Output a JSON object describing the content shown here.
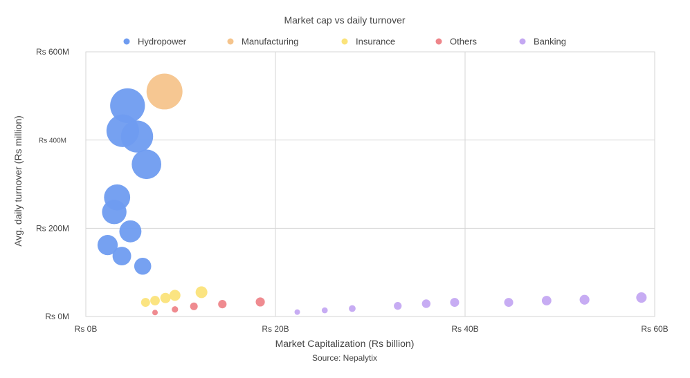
{
  "chart_data": {
    "type": "scatter",
    "title": "Market cap vs daily turnover",
    "xlabel": "Market Capitalization (Rs billion)",
    "ylabel": "Avg. daily turnover (Rs million)",
    "source": "Source: Nepalytix",
    "xlim": [
      0,
      60
    ],
    "ylim": [
      0,
      600
    ],
    "x_ticks": [
      {
        "value": 0,
        "label": "Rs 0B"
      },
      {
        "value": 20,
        "label": "Rs 20B"
      },
      {
        "value": 40,
        "label": "Rs 40B"
      },
      {
        "value": 60,
        "label": "Rs 60B"
      }
    ],
    "y_ticks": [
      {
        "value": 0,
        "label": "Rs 0M"
      },
      {
        "value": 200,
        "label": "Rs 200M"
      },
      {
        "value": 400,
        "label": "Rs 400M"
      },
      {
        "value": 600,
        "label": "Rs 600M"
      }
    ],
    "grid": true,
    "legend_position": "top",
    "bubble_size_encodes": "turnover",
    "series": [
      {
        "name": "Hydropower",
        "color": "#6f9cf0",
        "points": [
          {
            "x": 4.4,
            "y": 478
          },
          {
            "x": 3.9,
            "y": 421
          },
          {
            "x": 5.4,
            "y": 408
          },
          {
            "x": 6.4,
            "y": 345
          },
          {
            "x": 3.3,
            "y": 270
          },
          {
            "x": 3.0,
            "y": 237
          },
          {
            "x": 4.7,
            "y": 193
          },
          {
            "x": 2.3,
            "y": 162
          },
          {
            "x": 3.8,
            "y": 137
          },
          {
            "x": 6.0,
            "y": 114
          }
        ]
      },
      {
        "name": "Manufacturing",
        "color": "#f5c48c",
        "points": [
          {
            "x": 8.3,
            "y": 510
          }
        ]
      },
      {
        "name": "Insurance",
        "color": "#fbe37a",
        "points": [
          {
            "x": 12.2,
            "y": 55
          },
          {
            "x": 9.4,
            "y": 48
          },
          {
            "x": 8.4,
            "y": 42
          },
          {
            "x": 7.3,
            "y": 36
          },
          {
            "x": 6.3,
            "y": 32
          }
        ]
      },
      {
        "name": "Others",
        "color": "#ee858a",
        "points": [
          {
            "x": 18.4,
            "y": 33
          },
          {
            "x": 14.4,
            "y": 28
          },
          {
            "x": 11.4,
            "y": 23
          },
          {
            "x": 9.4,
            "y": 16
          },
          {
            "x": 7.3,
            "y": 9
          }
        ]
      },
      {
        "name": "Banking",
        "color": "#c4a8f2",
        "points": [
          {
            "x": 22.3,
            "y": 10
          },
          {
            "x": 25.2,
            "y": 14
          },
          {
            "x": 28.1,
            "y": 18
          },
          {
            "x": 32.9,
            "y": 24
          },
          {
            "x": 35.9,
            "y": 29
          },
          {
            "x": 38.9,
            "y": 32
          },
          {
            "x": 44.6,
            "y": 32
          },
          {
            "x": 48.6,
            "y": 36
          },
          {
            "x": 52.6,
            "y": 38
          },
          {
            "x": 58.6,
            "y": 43
          }
        ]
      }
    ]
  }
}
